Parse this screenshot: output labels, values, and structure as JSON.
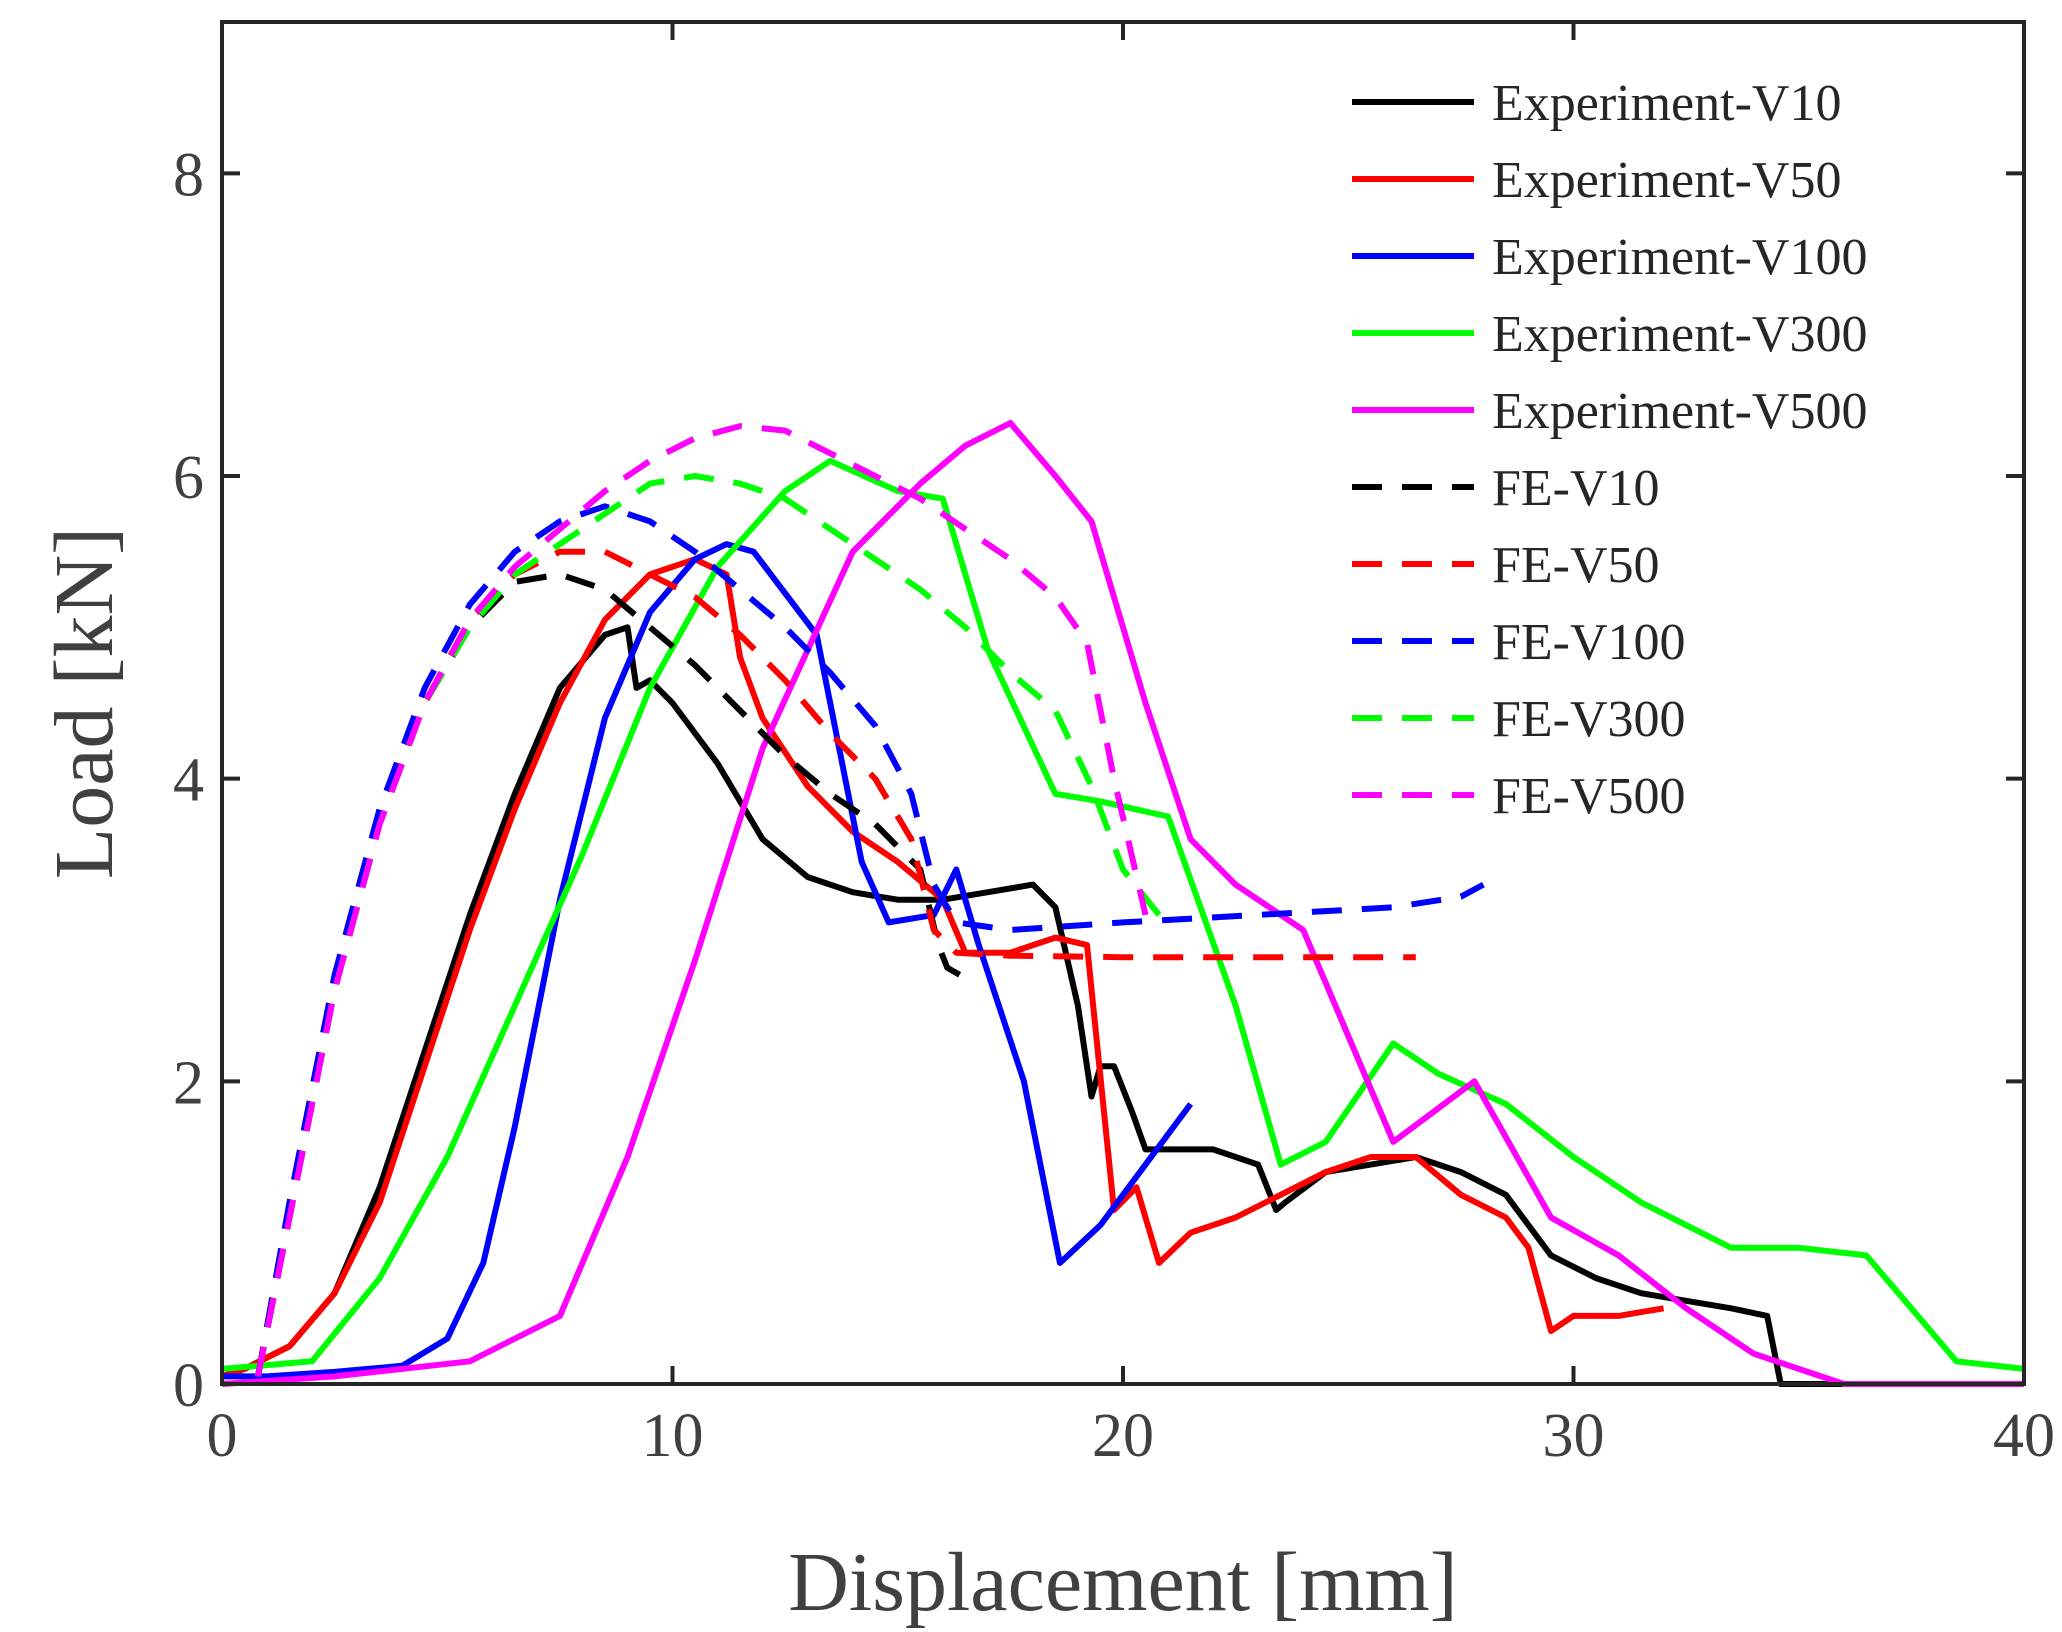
{
  "chart_data": {
    "type": "line",
    "title": "",
    "xlabel": "Displacement [mm]",
    "ylabel": "Load [kN]",
    "xlim": [
      0,
      40
    ],
    "ylim": [
      0,
      9
    ],
    "xticks": [
      0,
      10,
      20,
      30,
      40
    ],
    "xtick_labels": [
      "0",
      "10",
      "20",
      "30",
      "40"
    ],
    "yticks": [
      0,
      2,
      4,
      6,
      8
    ],
    "ytick_labels": [
      "0",
      "2",
      "4",
      "6",
      "8"
    ],
    "grid": false,
    "legend_position": "top-right",
    "series": [
      {
        "name": "Experiment-V10",
        "color": "#000000",
        "dash": "solid",
        "x": [
          0,
          0.5,
          1.5,
          2.5,
          3.5,
          4.5,
          5.5,
          6.5,
          7.5,
          8.5,
          9.0,
          9.2,
          9.5,
          10.0,
          11.0,
          12.0,
          13.0,
          14.0,
          15.0,
          16.0,
          17.0,
          18.0,
          18.5,
          19.0,
          19.3,
          19.5,
          19.8,
          20.2,
          20.5,
          21.0,
          22.0,
          23.0,
          23.4,
          23.6,
          24.5,
          25.5,
          26.5,
          27.5,
          28.5,
          29.5,
          30.5,
          31.5,
          32.5,
          33.5,
          34.3,
          34.6,
          36.0,
          40.0
        ],
        "y": [
          0.05,
          0.1,
          0.25,
          0.6,
          1.3,
          2.2,
          3.1,
          3.9,
          4.6,
          4.95,
          5.0,
          4.6,
          4.65,
          4.5,
          4.1,
          3.6,
          3.35,
          3.25,
          3.2,
          3.2,
          3.25,
          3.3,
          3.15,
          2.5,
          1.9,
          2.1,
          2.1,
          1.8,
          1.55,
          1.55,
          1.55,
          1.45,
          1.15,
          1.2,
          1.4,
          1.45,
          1.5,
          1.4,
          1.25,
          0.85,
          0.7,
          0.6,
          0.55,
          0.5,
          0.45,
          0.0,
          0.0,
          0.0
        ]
      },
      {
        "name": "Experiment-V50",
        "color": "#ff0000",
        "dash": "solid",
        "x": [
          0,
          0.5,
          1.5,
          2.5,
          3.5,
          4.5,
          5.5,
          6.5,
          7.5,
          8.5,
          9.5,
          10.5,
          11.2,
          11.5,
          12.0,
          13.0,
          14.0,
          15.0,
          16.0,
          16.5,
          17.5,
          18.5,
          19.2,
          19.8,
          20.3,
          20.8,
          21.5,
          22.5,
          23.5,
          24.5,
          25.5,
          26.5,
          27.5,
          28.5,
          29.0,
          29.5,
          30.0,
          31.0,
          32.0
        ],
        "y": [
          0.05,
          0.1,
          0.25,
          0.6,
          1.2,
          2.1,
          3.0,
          3.8,
          4.5,
          5.05,
          5.35,
          5.45,
          5.35,
          4.8,
          4.4,
          3.95,
          3.65,
          3.45,
          3.2,
          2.85,
          2.85,
          2.95,
          2.9,
          1.15,
          1.3,
          0.8,
          1.0,
          1.1,
          1.25,
          1.4,
          1.5,
          1.5,
          1.25,
          1.1,
          0.9,
          0.35,
          0.45,
          0.45,
          0.5
        ]
      },
      {
        "name": "Experiment-V100",
        "color": "#0000ff",
        "dash": "solid",
        "x": [
          0,
          1.0,
          2.5,
          4.0,
          5.0,
          5.8,
          6.5,
          7.5,
          8.5,
          9.5,
          10.5,
          11.2,
          11.8,
          13.2,
          14.2,
          14.8,
          15.8,
          16.3,
          16.8,
          17.8,
          18.6,
          19.5,
          20.5,
          21.5
        ],
        "y": [
          0.05,
          0.05,
          0.08,
          0.12,
          0.3,
          0.8,
          1.7,
          3.2,
          4.4,
          5.1,
          5.45,
          5.55,
          5.5,
          4.95,
          3.45,
          3.05,
          3.1,
          3.4,
          2.9,
          2.0,
          0.8,
          1.05,
          1.45,
          1.85
        ]
      },
      {
        "name": "Experiment-V300",
        "color": "#00ff00",
        "dash": "solid",
        "x": [
          0,
          2.0,
          3.5,
          5.0,
          6.5,
          8.0,
          9.5,
          11.0,
          12.5,
          13.5,
          15.0,
          16.0,
          17.0,
          18.5,
          19.5,
          21.0,
          22.5,
          23.5,
          24.5,
          26.0,
          27.0,
          28.5,
          30.0,
          31.5,
          33.5,
          35.0,
          36.5,
          38.5,
          40.0
        ],
        "y": [
          0.1,
          0.15,
          0.7,
          1.5,
          2.5,
          3.5,
          4.6,
          5.4,
          5.9,
          6.1,
          5.9,
          5.85,
          4.85,
          3.9,
          3.85,
          3.75,
          2.5,
          1.45,
          1.6,
          2.25,
          2.05,
          1.85,
          1.5,
          1.2,
          0.9,
          0.9,
          0.85,
          0.15,
          0.1
        ]
      },
      {
        "name": "Experiment-V500",
        "color": "#ff00ff",
        "dash": "solid",
        "x": [
          0,
          2.5,
          5.5,
          7.5,
          9.0,
          10.5,
          12.0,
          14.0,
          15.5,
          16.5,
          17.5,
          18.5,
          19.3,
          20.5,
          21.5,
          22.5,
          24.0,
          26.0,
          27.8,
          29.5,
          31.0,
          32.5,
          34.0,
          36.0,
          40.0
        ],
        "y": [
          0.0,
          0.05,
          0.15,
          0.45,
          1.5,
          2.8,
          4.2,
          5.5,
          5.95,
          6.2,
          6.35,
          6.0,
          5.7,
          4.5,
          3.6,
          3.3,
          3.0,
          1.6,
          2.0,
          1.1,
          0.85,
          0.5,
          0.2,
          0.0,
          0.0
        ]
      },
      {
        "name": "FE-V10",
        "color": "#000000",
        "dash": "dashed",
        "x": [
          0.8,
          1.5,
          2.5,
          3.5,
          4.5,
          5.5,
          6.5,
          7.5,
          8.5,
          9.5,
          10.5,
          11.5,
          12.5,
          13.5,
          14.5,
          15.5,
          15.9,
          16.1,
          16.4
        ],
        "y": [
          0.05,
          1.2,
          2.7,
          3.8,
          4.5,
          5.0,
          5.3,
          5.35,
          5.25,
          5.0,
          4.75,
          4.45,
          4.15,
          3.9,
          3.7,
          3.4,
          2.9,
          2.75,
          2.7
        ]
      },
      {
        "name": "FE-V50",
        "color": "#ff0000",
        "dash": "dashed",
        "x": [
          0.8,
          1.5,
          2.5,
          3.5,
          4.5,
          5.5,
          6.5,
          7.5,
          8.5,
          9.5,
          10.5,
          11.5,
          12.5,
          13.5,
          14.5,
          15.3,
          15.8,
          16.3,
          17.5,
          20.0,
          23.0,
          26.5
        ],
        "y": [
          0.05,
          1.2,
          2.7,
          3.8,
          4.5,
          5.05,
          5.35,
          5.5,
          5.5,
          5.35,
          5.2,
          4.95,
          4.65,
          4.3,
          4.0,
          3.6,
          3.0,
          2.85,
          2.83,
          2.82,
          2.82,
          2.82
        ]
      },
      {
        "name": "FE-V100",
        "color": "#0000ff",
        "dash": "dashed",
        "x": [
          0.8,
          1.5,
          2.5,
          3.5,
          4.5,
          5.5,
          6.5,
          7.5,
          8.5,
          9.5,
          10.5,
          11.5,
          12.5,
          13.5,
          14.5,
          15.3,
          15.8,
          16.3,
          17.5,
          20.0,
          23.0,
          26.0,
          27.5,
          28.0
        ],
        "y": [
          0.05,
          1.2,
          2.7,
          3.8,
          4.6,
          5.15,
          5.5,
          5.7,
          5.8,
          5.7,
          5.5,
          5.25,
          5.0,
          4.7,
          4.35,
          3.9,
          3.3,
          3.05,
          3.0,
          3.05,
          3.1,
          3.15,
          3.22,
          3.3
        ]
      },
      {
        "name": "FE-V300",
        "color": "#00ff00",
        "dash": "dashed",
        "x": [
          0.8,
          1.5,
          2.5,
          3.5,
          4.5,
          5.5,
          6.5,
          7.5,
          8.5,
          9.5,
          10.5,
          11.5,
          12.5,
          13.5,
          14.5,
          15.5,
          16.5,
          17.5,
          18.5,
          19.3,
          20.0,
          20.8
        ],
        "y": [
          0.05,
          1.1,
          2.6,
          3.7,
          4.5,
          5.0,
          5.35,
          5.55,
          5.75,
          5.95,
          6.0,
          5.95,
          5.85,
          5.65,
          5.45,
          5.25,
          5.0,
          4.7,
          4.45,
          3.95,
          3.4,
          3.1
        ]
      },
      {
        "name": "FE-V500",
        "color": "#ff00ff",
        "dash": "dashed",
        "x": [
          0.8,
          1.5,
          2.5,
          3.5,
          4.5,
          5.5,
          6.5,
          7.5,
          8.5,
          9.5,
          10.5,
          11.5,
          12.5,
          13.5,
          14.5,
          15.5,
          16.5,
          17.5,
          18.5,
          19.2,
          19.8,
          20.5
        ],
        "y": [
          0.05,
          1.1,
          2.6,
          3.7,
          4.5,
          5.05,
          5.4,
          5.65,
          5.9,
          6.1,
          6.25,
          6.33,
          6.3,
          6.15,
          6.0,
          5.85,
          5.65,
          5.45,
          5.2,
          4.9,
          4.0,
          3.1
        ]
      }
    ]
  }
}
